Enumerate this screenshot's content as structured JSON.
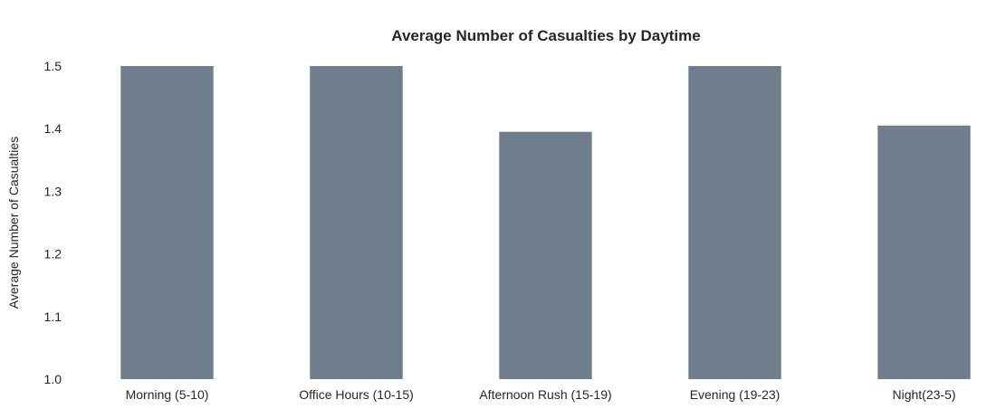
{
  "chart_data": {
    "type": "bar",
    "title": "Average Number of Casualties by Daytime",
    "xlabel": "",
    "ylabel": "Average Number of Casualties",
    "categories": [
      "Morning (5-10)",
      "Office Hours (10-15)",
      "Afternoon Rush (15-19)",
      "Evening (19-23)",
      "Night(23-5)"
    ],
    "values": [
      1.52,
      1.52,
      1.395,
      1.52,
      1.405
    ],
    "ylim": [
      1.0,
      1.5
    ],
    "yticks": [
      "1.0",
      "1.1",
      "1.2",
      "1.3",
      "1.4",
      "1.5"
    ],
    "grid": false,
    "legend": "none",
    "bar_color": "#6f7e8d"
  }
}
